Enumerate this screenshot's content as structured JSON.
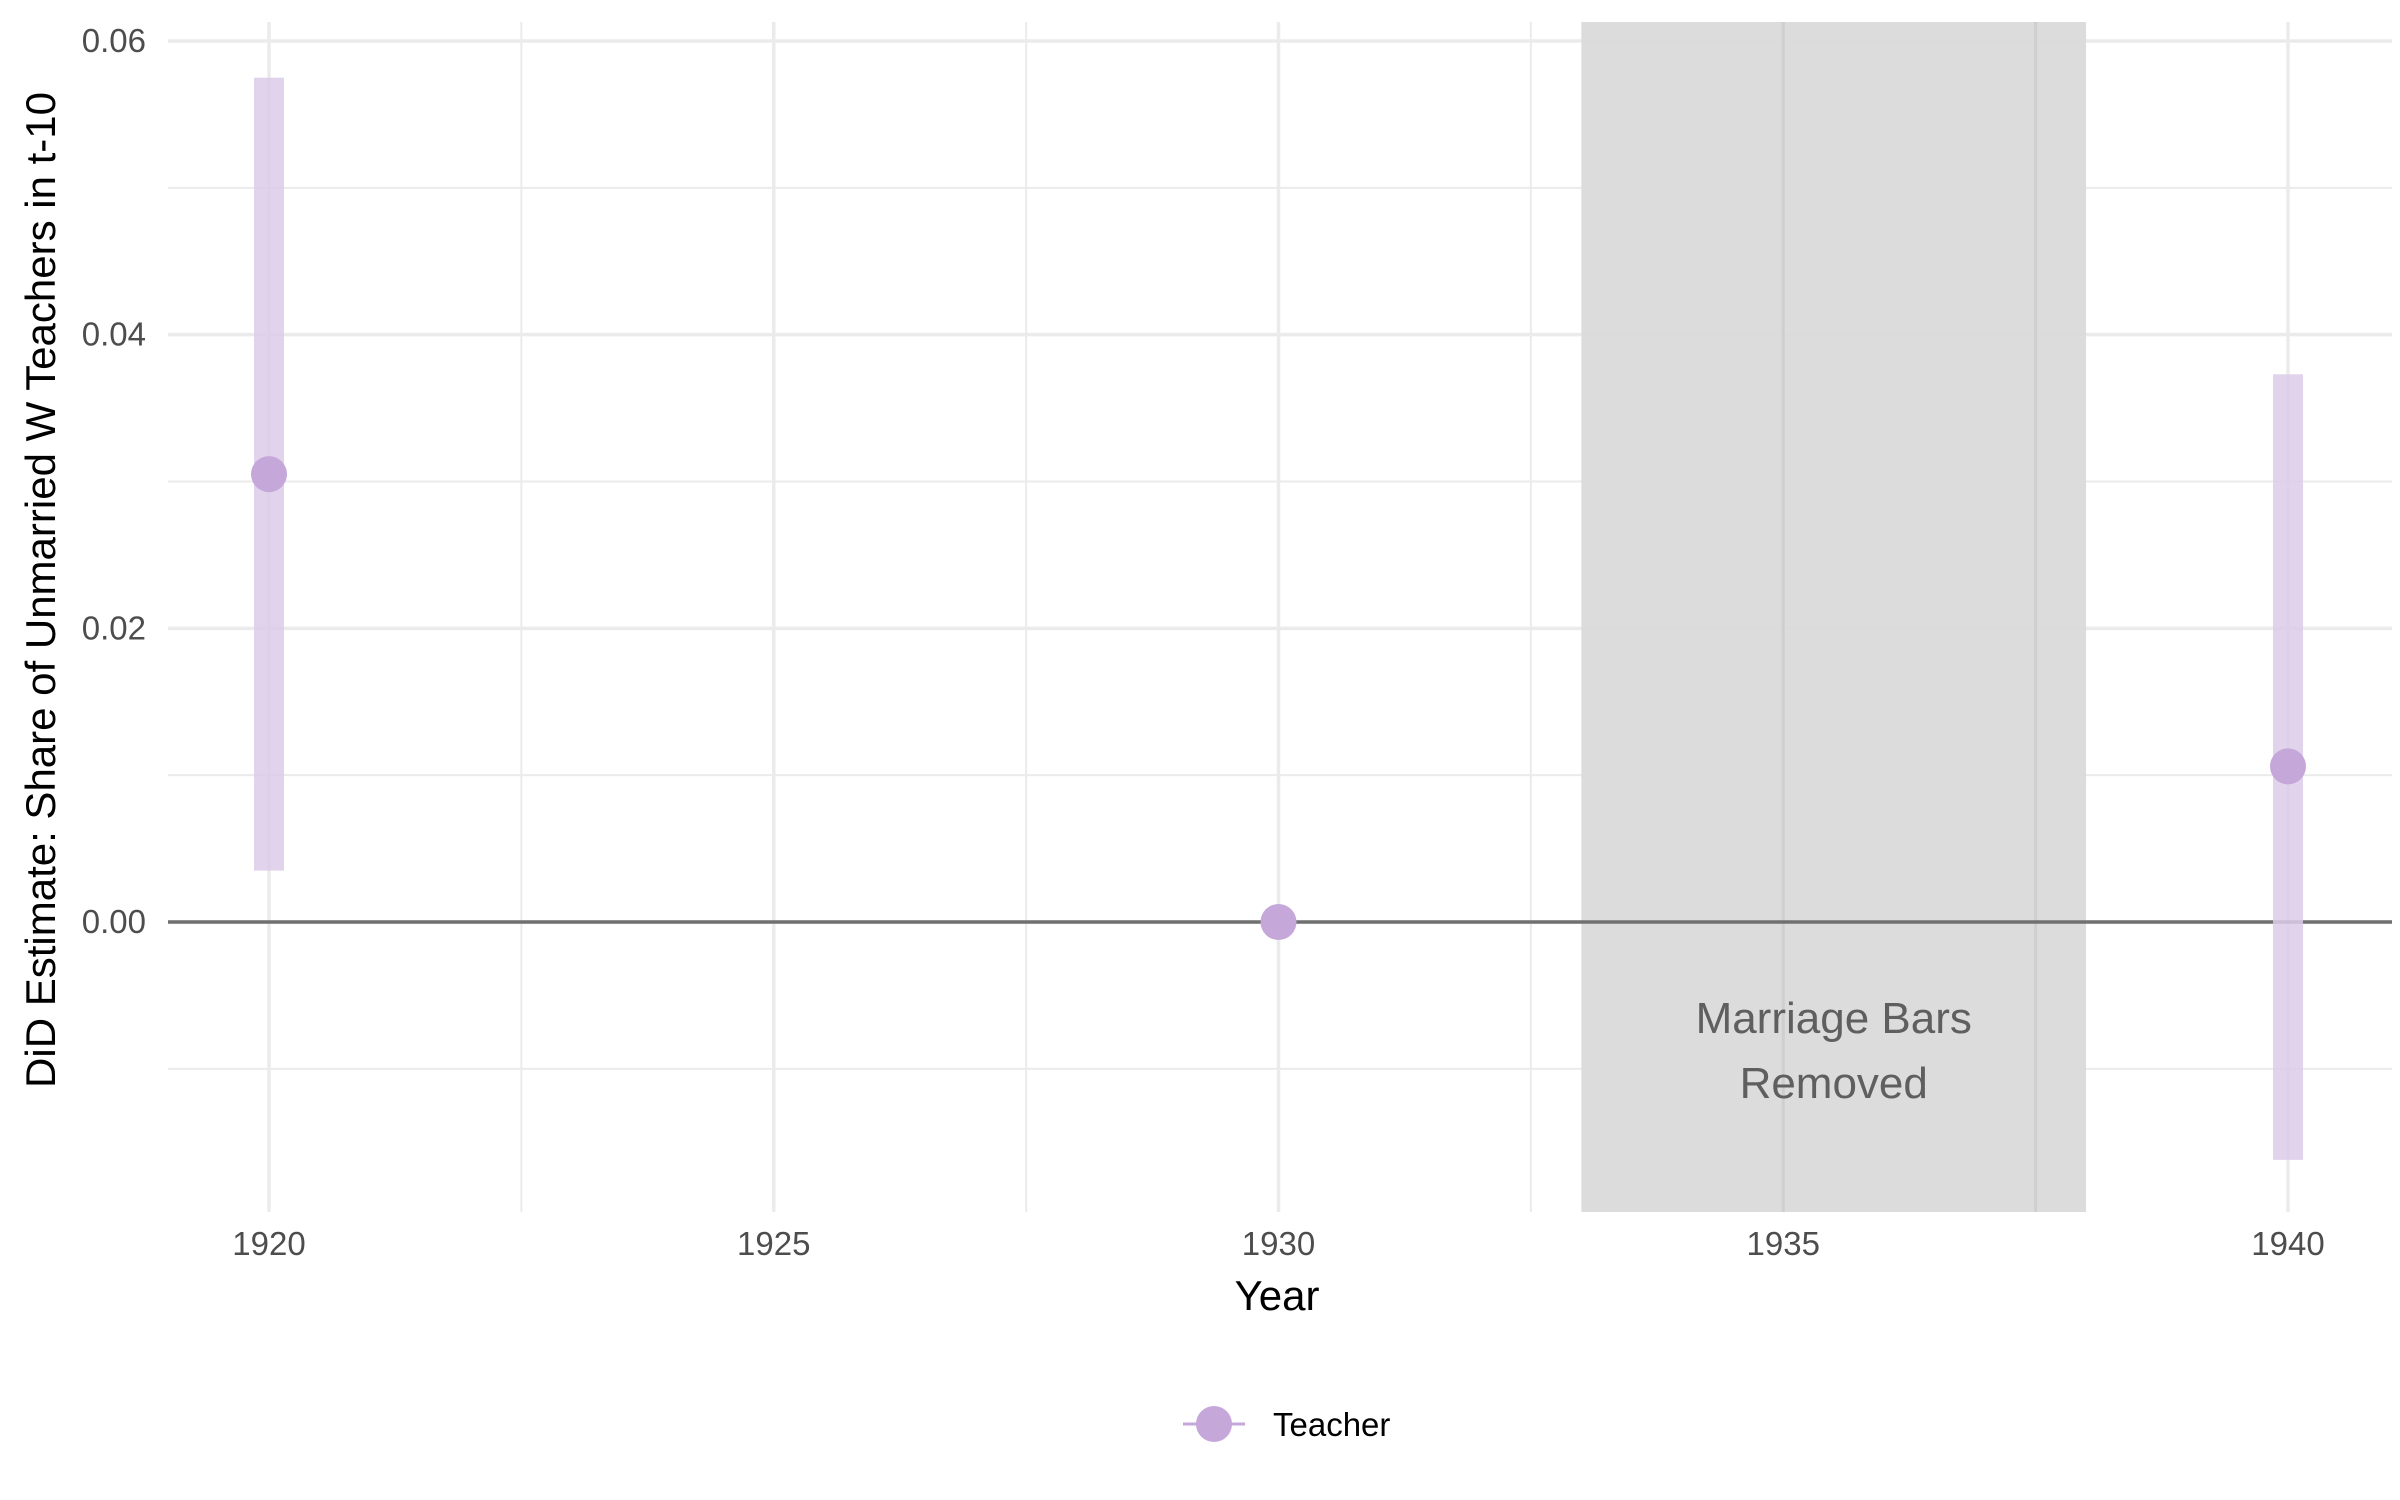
{
  "chart_data": {
    "type": "scatter",
    "title": "",
    "xlabel": "Year",
    "ylabel": "DiD Estimate: Share of Unmarried W Teachers in t-10",
    "xlim": [
      1918,
      1941
    ],
    "ylim": [
      -0.02,
      0.0615
    ],
    "x_ticks": [
      1920,
      1925,
      1930,
      1935,
      1940
    ],
    "y_ticks": [
      0.0,
      0.02,
      0.04,
      0.06
    ],
    "x_tick_labels": [
      "1920",
      "1925",
      "1930",
      "1935",
      "1940"
    ],
    "y_tick_labels": [
      "0.00",
      "0.02",
      "0.04",
      "0.06"
    ],
    "grid": true,
    "reference_line_y": 0,
    "shaded_region": {
      "x_start": 1933,
      "x_end": 1938,
      "label_lines": [
        "Marriage Bars",
        "Removed"
      ]
    },
    "series": [
      {
        "name": "Teacher",
        "color": "#c5a7d9",
        "points": [
          {
            "x": 1920,
            "y": 0.0305,
            "ci_low": 0.0035,
            "ci_high": 0.0575
          },
          {
            "x": 1930,
            "y": 0.0,
            "ci_low": 0.0,
            "ci_high": 0.0
          },
          {
            "x": 1940,
            "y": 0.0106,
            "ci_low": -0.0162,
            "ci_high": 0.0373
          }
        ]
      }
    ],
    "legend_position": "bottom"
  },
  "colors": {
    "grid": "#ebebeb",
    "zero_line": "#707070",
    "shade": "#dadada",
    "point": "#c5a7d9",
    "errorbar": "#dccbe8"
  }
}
